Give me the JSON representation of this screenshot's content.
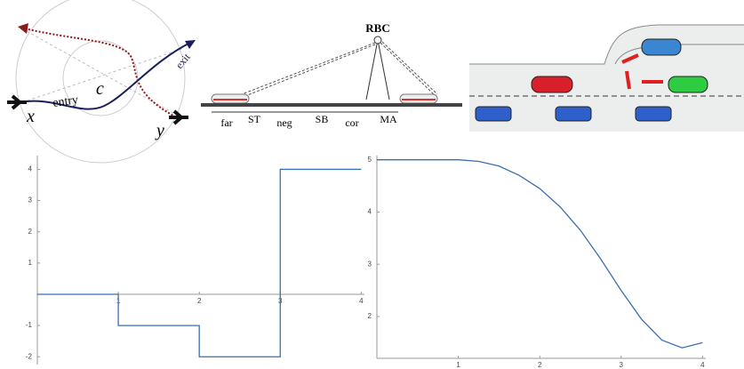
{
  "illustrations": {
    "path_panel": {
      "start": "x",
      "entry": "entry",
      "center": "c",
      "exit": "exit",
      "end": "y"
    },
    "train_panel": {
      "tower": "RBC",
      "segments": [
        "far",
        "ST",
        "neg",
        "SB",
        "cor",
        "MA"
      ]
    }
  },
  "chart_data": [
    {
      "type": "line",
      "x": [
        0,
        1,
        1,
        2,
        2,
        3,
        3,
        4
      ],
      "series": [
        {
          "color": "#3b6fb0",
          "values": [
            0,
            0,
            -1,
            -1,
            -2,
            -2,
            4,
            4
          ]
        }
      ],
      "xlim": [
        0,
        4.04
      ],
      "ylim": [
        -2.25,
        4.44
      ],
      "xticks": [
        1,
        2,
        3,
        4
      ],
      "yticks": [
        -2,
        -1,
        1,
        2,
        3,
        4
      ]
    },
    {
      "type": "line",
      "x": [
        0,
        0.5,
        1,
        1.25,
        1.5,
        1.75,
        2,
        2.25,
        2.5,
        2.75,
        3,
        3.25,
        3.5,
        3.75,
        4
      ],
      "series": [
        {
          "color": "#3b6fb0",
          "values": [
            5,
            5,
            5,
            4.97,
            4.88,
            4.7,
            4.45,
            4.1,
            3.65,
            3.1,
            2.5,
            1.95,
            1.55,
            1.4,
            1.5
          ]
        }
      ],
      "xlim": [
        0,
        4.04
      ],
      "ylim": [
        1.2,
        5.08
      ],
      "xticks": [
        1,
        2,
        3,
        4
      ],
      "yticks": [
        2,
        3,
        4,
        5
      ]
    }
  ]
}
